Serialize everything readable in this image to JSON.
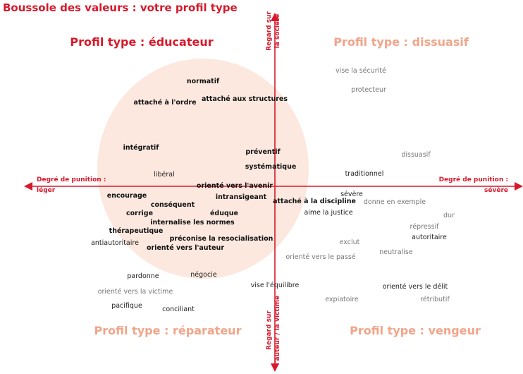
{
  "title": "Boussole des valeurs : votre profil type",
  "colors": {
    "accent": "#d7192b",
    "profile_faded": "#f0a58a",
    "circle_fill": "#fce8df",
    "axis": "#d7192b"
  },
  "axes": {
    "left": {
      "line1": "Degré de punition :",
      "line2": "léger"
    },
    "right": {
      "line1": "Degré de punition :",
      "line2": "sévère"
    },
    "top": {
      "line1": "Regard sur",
      "line2": "la société"
    },
    "bottom": {
      "line1": "Regard sur",
      "line2": "l'auteur / la victime"
    }
  },
  "profiles": {
    "educateur": "Profil type : éducateur",
    "dissuasif": "Profil type : dissuasif",
    "reparateur": "Profil type : réparateur",
    "vengeur": "Profil type : vengeur"
  },
  "words": [
    {
      "text": "normatif",
      "style": "strong"
    },
    {
      "text": "attaché à l'ordre",
      "style": "strong"
    },
    {
      "text": "attaché aux structures",
      "style": "strong"
    },
    {
      "text": "intégratif",
      "style": "strong"
    },
    {
      "text": "préventif",
      "style": "strong"
    },
    {
      "text": "systématique",
      "style": "strong"
    },
    {
      "text": "libéral",
      "style": "normal"
    },
    {
      "text": "orienté vers l'avenir",
      "style": "strong"
    },
    {
      "text": "encourage",
      "style": "strong"
    },
    {
      "text": "intransigeant",
      "style": "strong"
    },
    {
      "text": "conséquent",
      "style": "strong"
    },
    {
      "text": "corrige",
      "style": "strong"
    },
    {
      "text": "éduque",
      "style": "strong"
    },
    {
      "text": "internalise les normes",
      "style": "strong"
    },
    {
      "text": "thérapeutique",
      "style": "strong"
    },
    {
      "text": "préconise la resocialisation",
      "style": "strong"
    },
    {
      "text": "antiautoritaire",
      "style": "normal"
    },
    {
      "text": "orienté vers l'auteur",
      "style": "strong"
    },
    {
      "text": "pardonne",
      "style": "normal"
    },
    {
      "text": "négocie",
      "style": "normal"
    },
    {
      "text": "orienté vers la victime",
      "style": "faded"
    },
    {
      "text": "pacifique",
      "style": "normal"
    },
    {
      "text": "conciliant",
      "style": "normal"
    },
    {
      "text": "vise la sécurité",
      "style": "faded"
    },
    {
      "text": "protecteur",
      "style": "faded"
    },
    {
      "text": "dissuasif",
      "style": "faded"
    },
    {
      "text": "traditionnel",
      "style": "normal"
    },
    {
      "text": "sévère",
      "style": "normal"
    },
    {
      "text": "donne en exemple",
      "style": "faded"
    },
    {
      "text": "attaché à la discipline",
      "style": "strong"
    },
    {
      "text": "aime la justice",
      "style": "normal"
    },
    {
      "text": "dur",
      "style": "faded"
    },
    {
      "text": "répressif",
      "style": "faded"
    },
    {
      "text": "autoritaire",
      "style": "normal"
    },
    {
      "text": "exclut",
      "style": "faded"
    },
    {
      "text": "neutralise",
      "style": "faded"
    },
    {
      "text": "orienté vers le passé",
      "style": "faded"
    },
    {
      "text": "vise l'équilibre",
      "style": "normal"
    },
    {
      "text": "expiatoire",
      "style": "faded"
    },
    {
      "text": "orienté vers le délit",
      "style": "normal"
    },
    {
      "text": "rétributif",
      "style": "faded"
    }
  ]
}
